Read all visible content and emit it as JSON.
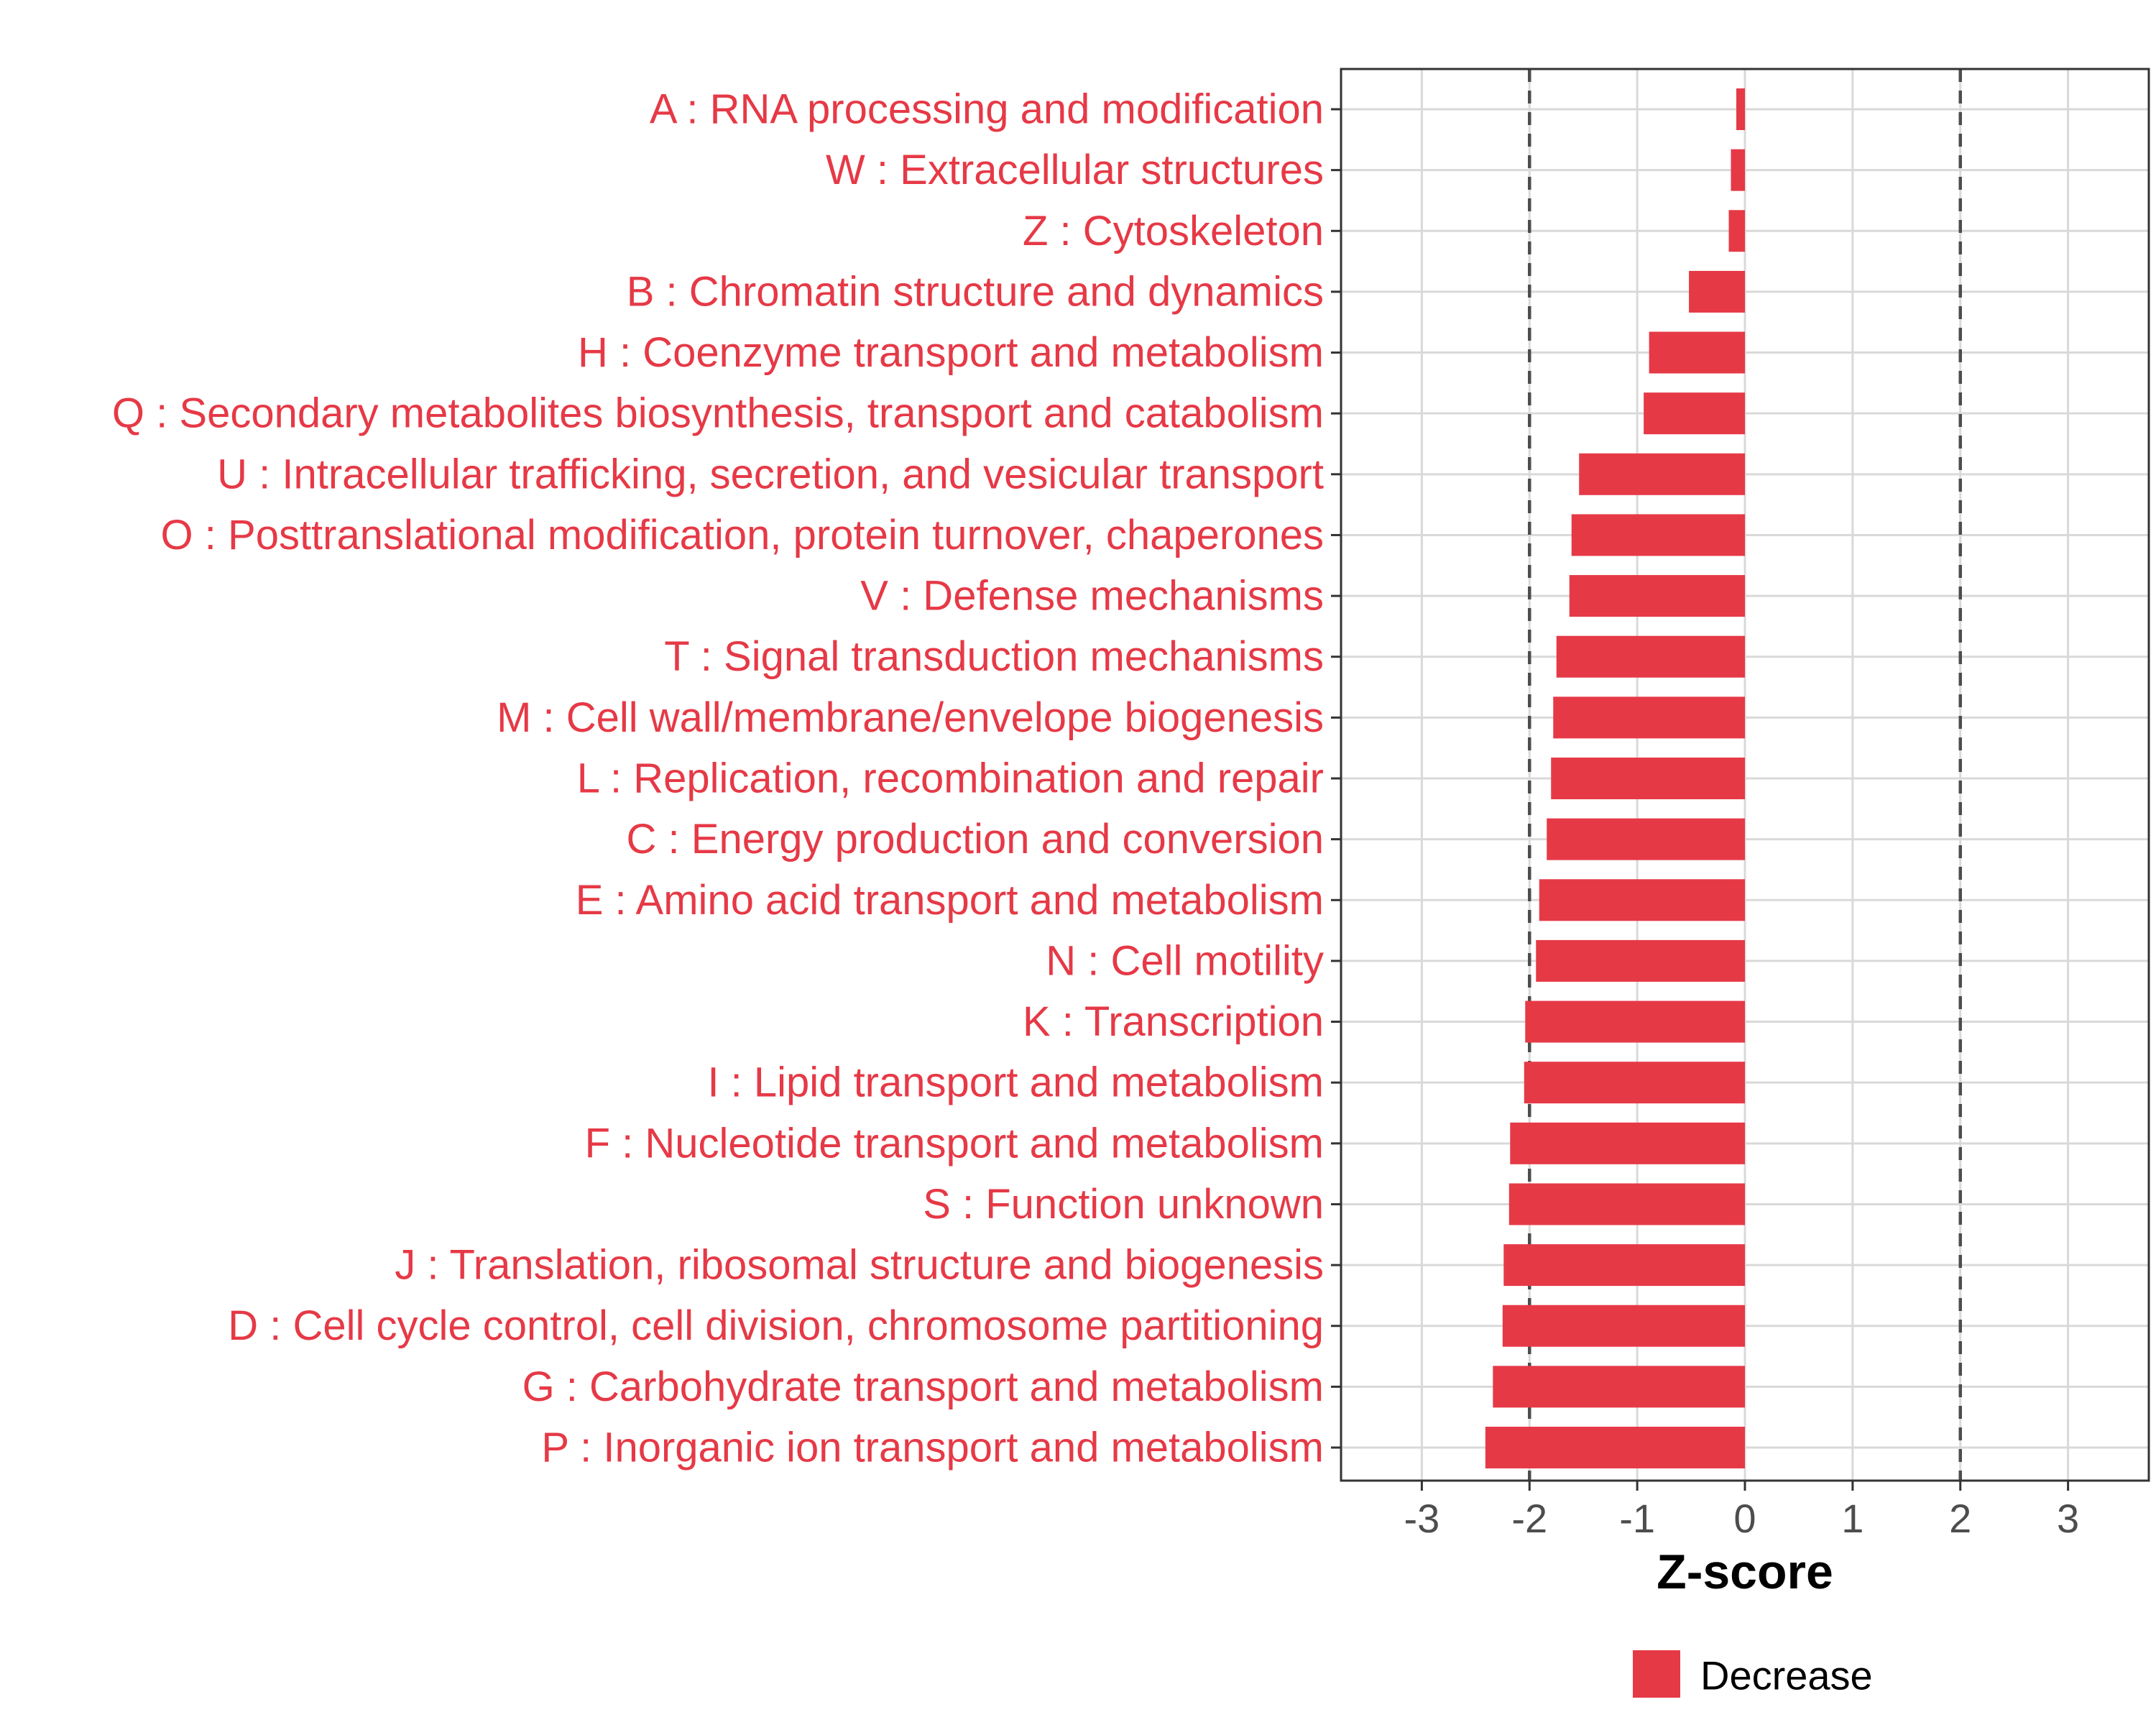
{
  "chart_data": {
    "type": "bar",
    "orientation": "horizontal",
    "categories": [
      "A : RNA processing and modification",
      "W : Extracellular structures",
      "Z : Cytoskeleton",
      "B : Chromatin structure and dynamics",
      "H : Coenzyme transport and metabolism",
      "Q : Secondary metabolites biosynthesis, transport and catabolism",
      "U : Intracellular trafficking, secretion, and vesicular transport",
      "O : Posttranslational modification, protein turnover, chaperones",
      "V : Defense mechanisms",
      "T : Signal transduction mechanisms",
      "M : Cell wall/membrane/envelope biogenesis",
      "L : Replication, recombination and repair",
      "C : Energy production and conversion",
      "E : Amino acid transport and metabolism",
      "N : Cell motility",
      "K : Transcription",
      "I : Lipid transport and metabolism",
      "F : Nucleotide transport and metabolism",
      "S : Function unknown",
      "J : Translation, ribosomal structure and biogenesis",
      "D : Cell cycle control, cell division, chromosome partitioning",
      "G : Carbohydrate transport and metabolism",
      "P : Inorganic ion transport and metabolism"
    ],
    "values": [
      -0.08,
      -0.13,
      -0.15,
      -0.52,
      -0.89,
      -0.94,
      -1.54,
      -1.61,
      -1.63,
      -1.75,
      -1.78,
      -1.8,
      -1.84,
      -1.91,
      -1.94,
      -2.04,
      -2.05,
      -2.18,
      -2.19,
      -2.24,
      -2.25,
      -2.34,
      -2.41
    ],
    "xlabel": "Z-score",
    "ylabel": "",
    "xlim": [
      -3.75,
      3.75
    ],
    "xticks": [
      -3,
      -2,
      -1,
      0,
      1,
      2,
      3
    ],
    "xtick_labels": [
      "-3",
      "-2",
      "-1",
      "0",
      "1",
      "2",
      "3"
    ],
    "reference_lines": [
      -2,
      2
    ],
    "grid": true,
    "legend": {
      "position": "bottom",
      "entries": [
        {
          "label": "Decrease",
          "color": "#e63946"
        }
      ]
    },
    "colors": {
      "bar": "#e63946",
      "label": "#e63946",
      "grid": "#d9d9d9",
      "axis": "#333333",
      "reference_line": "#4d4d4d"
    }
  }
}
